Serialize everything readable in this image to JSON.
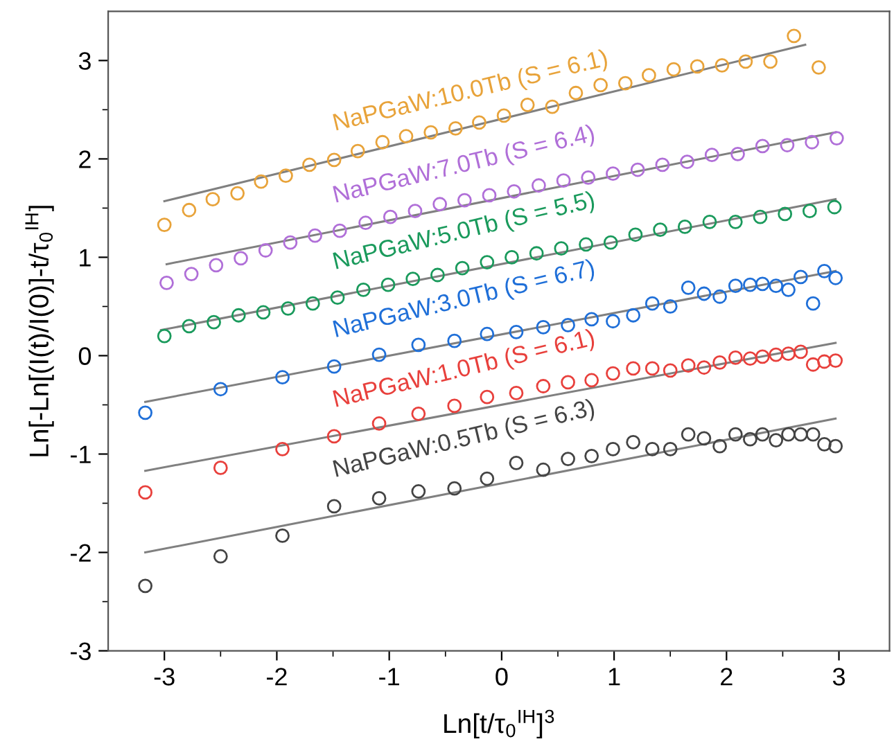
{
  "chart_data": {
    "type": "scatter",
    "xlabel": "Ln[t/τ$_{0}$$^{IH}$]$^{3}$",
    "ylabel": "Ln[-Ln[(I(t)/I(0)]-t/τ$_{0}$$^{IH}$]",
    "xlim": [
      -3.5,
      3.45
    ],
    "ylim": [
      -3,
      3.5
    ],
    "xticks": [
      -3,
      {
        "value": -2.5,
        "label": null
      },
      -2,
      {
        "value": -1.5,
        "label": null
      },
      -1,
      {
        "value": -0.5,
        "label": null
      },
      0,
      {
        "value": 0.5,
        "label": null
      },
      1,
      {
        "value": 1.5,
        "label": null
      },
      2,
      {
        "value": 2.5,
        "label": null
      },
      3
    ],
    "yticks": [
      -3,
      {
        "value": -2.5,
        "label": null
      },
      -2,
      {
        "value": -1.5,
        "label": null
      },
      -1,
      {
        "value": -0.5,
        "label": null
      },
      0,
      {
        "value": 0.5,
        "label": null
      },
      1,
      {
        "value": 1.5,
        "label": null
      },
      2,
      {
        "value": 2.5,
        "label": null
      },
      3
    ],
    "legend": false,
    "grid": false,
    "series": [
      {
        "name": "NaPGaW:10.0Tb (S = 6.1)",
        "marker": "circle",
        "color": "#e8a33a",
        "x": [
          -3.0,
          -2.78,
          -2.57,
          -2.35,
          -2.14,
          -1.92,
          -1.71,
          -1.49,
          -1.28,
          -1.06,
          -0.85,
          -0.63,
          -0.41,
          -0.2,
          0.02,
          0.23,
          0.45,
          0.66,
          0.88,
          1.1,
          1.31,
          1.53,
          1.74,
          1.96,
          2.17,
          2.39,
          2.6,
          2.82
        ],
        "values": [
          1.33,
          1.48,
          1.59,
          1.65,
          1.77,
          1.83,
          1.94,
          1.99,
          2.08,
          2.17,
          2.23,
          2.27,
          2.31,
          2.37,
          2.44,
          2.55,
          2.53,
          2.67,
          2.75,
          2.77,
          2.85,
          2.91,
          2.94,
          2.95,
          2.99,
          2.99,
          3.25,
          2.93
        ]
      },
      {
        "name": "NaPGaW:7.0Tb (S = 6.4)",
        "marker": "circle",
        "color": "#b06fd8",
        "x": [
          -2.98,
          -2.76,
          -2.54,
          -2.32,
          -2.1,
          -1.88,
          -1.66,
          -1.44,
          -1.21,
          -0.99,
          -0.77,
          -0.55,
          -0.33,
          -0.11,
          0.11,
          0.33,
          0.55,
          0.77,
          0.99,
          1.21,
          1.43,
          1.65,
          1.87,
          2.1,
          2.32,
          2.54,
          2.76,
          2.98
        ],
        "values": [
          0.74,
          0.83,
          0.92,
          0.99,
          1.07,
          1.15,
          1.22,
          1.27,
          1.35,
          1.41,
          1.47,
          1.54,
          1.58,
          1.63,
          1.67,
          1.73,
          1.78,
          1.81,
          1.85,
          1.89,
          1.94,
          1.97,
          2.04,
          2.05,
          2.13,
          2.14,
          2.17,
          2.21
        ]
      },
      {
        "name": "NaPGaW:5.0Tb (S = 5.5)",
        "marker": "circle",
        "color": "#1a9a5c",
        "x": [
          -3.0,
          -2.78,
          -2.56,
          -2.34,
          -2.12,
          -1.9,
          -1.68,
          -1.46,
          -1.23,
          -1.01,
          -0.79,
          -0.57,
          -0.35,
          -0.13,
          0.09,
          0.31,
          0.53,
          0.75,
          0.97,
          1.19,
          1.41,
          1.63,
          1.85,
          2.08,
          2.3,
          2.52,
          2.74,
          2.96
        ],
        "values": [
          0.2,
          0.3,
          0.34,
          0.41,
          0.44,
          0.48,
          0.53,
          0.59,
          0.67,
          0.72,
          0.78,
          0.82,
          0.89,
          0.95,
          1.0,
          1.04,
          1.09,
          1.13,
          1.15,
          1.23,
          1.28,
          1.31,
          1.36,
          1.36,
          1.41,
          1.44,
          1.47,
          1.51
        ]
      },
      {
        "name": "NaPGaW:3.0Tb (S = 6.7)",
        "marker": "circle",
        "color": "#1f6fd8",
        "x": [
          -3.17,
          -2.5,
          -1.95,
          -1.49,
          -1.09,
          -0.74,
          -0.42,
          -0.13,
          0.13,
          0.37,
          0.59,
          0.8,
          0.99,
          1.17,
          1.34,
          1.5,
          1.66,
          1.8,
          1.94,
          2.08,
          2.21,
          2.32,
          2.44,
          2.55,
          2.66,
          2.77,
          2.87,
          2.97
        ],
        "values": [
          -0.58,
          -0.34,
          -0.22,
          -0.11,
          0.01,
          0.11,
          0.15,
          0.22,
          0.24,
          0.29,
          0.31,
          0.37,
          0.35,
          0.41,
          0.53,
          0.5,
          0.69,
          0.63,
          0.6,
          0.71,
          0.72,
          0.73,
          0.71,
          0.67,
          0.8,
          0.53,
          0.86,
          0.79
        ]
      },
      {
        "name": "NaPGaW:1.0Tb (S = 6.1)",
        "marker": "circle",
        "color": "#e8403c",
        "x": [
          -3.17,
          -2.5,
          -1.95,
          -1.49,
          -1.09,
          -0.74,
          -0.42,
          -0.13,
          0.13,
          0.37,
          0.59,
          0.8,
          0.99,
          1.17,
          1.34,
          1.5,
          1.66,
          1.8,
          1.94,
          2.08,
          2.21,
          2.32,
          2.44,
          2.55,
          2.66,
          2.77,
          2.87,
          2.97
        ],
        "values": [
          -1.39,
          -1.14,
          -0.95,
          -0.82,
          -0.69,
          -0.59,
          -0.51,
          -0.42,
          -0.38,
          -0.31,
          -0.27,
          -0.25,
          -0.18,
          -0.13,
          -0.13,
          -0.15,
          -0.1,
          -0.12,
          -0.07,
          -0.02,
          -0.03,
          -0.01,
          0.01,
          0.02,
          0.04,
          -0.09,
          -0.06,
          -0.05
        ]
      },
      {
        "name": "NaPGaW:0.5Tb (S = 6.3)",
        "marker": "circle",
        "color": "#444444",
        "x": [
          -3.17,
          -2.5,
          -1.95,
          -1.49,
          -1.09,
          -0.74,
          -0.42,
          -0.13,
          0.13,
          0.37,
          0.59,
          0.8,
          0.99,
          1.17,
          1.34,
          1.5,
          1.66,
          1.8,
          1.94,
          2.08,
          2.21,
          2.32,
          2.44,
          2.55,
          2.66,
          2.77,
          2.87,
          2.97
        ],
        "values": [
          -2.34,
          -2.04,
          -1.83,
          -1.53,
          -1.45,
          -1.38,
          -1.35,
          -1.25,
          -1.09,
          -1.16,
          -1.05,
          -1.02,
          -0.95,
          -0.88,
          -0.95,
          -0.95,
          -0.8,
          -0.84,
          -0.92,
          -0.8,
          -0.85,
          -0.8,
          -0.86,
          -0.8,
          -0.8,
          -0.8,
          -0.9,
          -0.92
        ]
      },
      {
        "type": "line",
        "color": "#808080",
        "line_style": "solid",
        "x": [
          -3.0,
          2.7
        ],
        "values": [
          1.57,
          3.16
        ]
      },
      {
        "type": "line",
        "color": "#808080",
        "line_style": "solid",
        "x": [
          -2.98,
          2.97
        ],
        "values": [
          0.93,
          2.27
        ]
      },
      {
        "type": "line",
        "color": "#808080",
        "line_style": "solid",
        "x": [
          -3.03,
          2.97
        ],
        "values": [
          0.26,
          1.59
        ]
      },
      {
        "type": "line",
        "color": "#808080",
        "line_style": "solid",
        "x": [
          -3.17,
          2.97
        ],
        "values": [
          -0.47,
          0.86
        ]
      },
      {
        "type": "line",
        "color": "#808080",
        "line_style": "solid",
        "x": [
          -3.17,
          2.97
        ],
        "values": [
          -1.17,
          0.13
        ]
      },
      {
        "type": "line",
        "color": "#808080",
        "line_style": "solid",
        "x": [
          -3.17,
          2.97
        ],
        "values": [
          -2.0,
          -0.64
        ]
      }
    ]
  }
}
